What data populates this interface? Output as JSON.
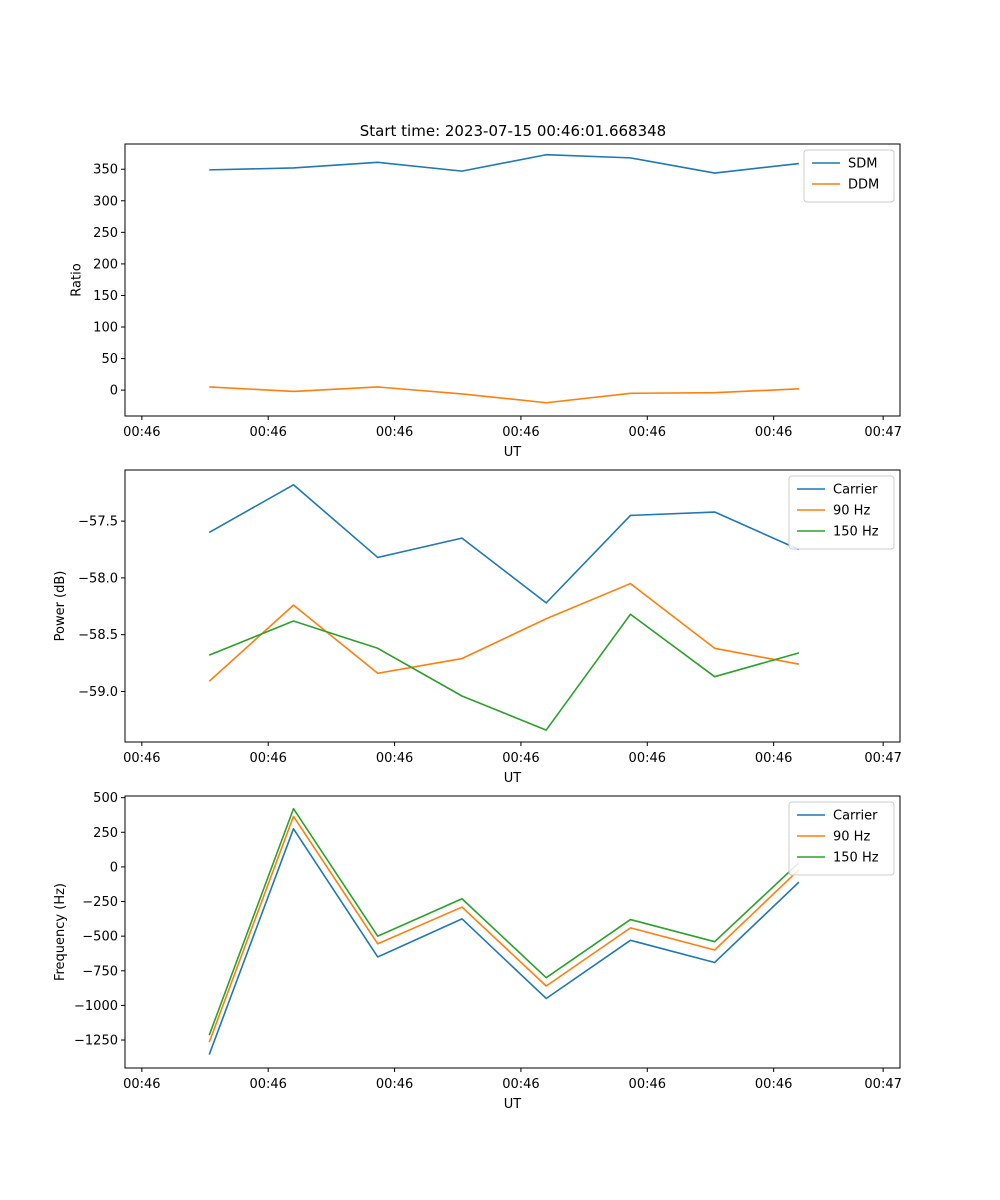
{
  "figure_title": "Start time: 2023-07-15 00:46:01.668348",
  "chart_data": [
    {
      "type": "line",
      "title": "Start time: 2023-07-15 00:46:01.668348",
      "xlabel": "UT",
      "ylabel": "Ratio",
      "x": [
        1,
        2,
        3,
        4,
        5,
        6,
        7,
        8
      ],
      "xlim": [
        0,
        9.2
      ],
      "xticks": [
        0.2,
        1.7,
        3.2,
        4.7,
        6.2,
        7.7,
        9.0
      ],
      "xtick_labels": [
        "00:46",
        "00:46",
        "00:46",
        "00:46",
        "00:46",
        "00:46",
        "00:47"
      ],
      "ylim": [
        -41,
        390
      ],
      "yticks": [
        0,
        50,
        100,
        150,
        200,
        250,
        300,
        350
      ],
      "ytick_labels": [
        "0",
        "50",
        "100",
        "150",
        "200",
        "250",
        "300",
        "350"
      ],
      "legend_position": "top-right",
      "series": [
        {
          "name": "SDM",
          "color": "#1f77b4",
          "values": [
            349,
            352,
            361,
            347,
            373,
            368,
            344,
            359
          ]
        },
        {
          "name": "DDM",
          "color": "#ff7f0e",
          "values": [
            5,
            -2,
            5,
            -6,
            -20,
            -5,
            -4,
            2
          ]
        }
      ]
    },
    {
      "type": "line",
      "title": "",
      "xlabel": "UT",
      "ylabel": "Power (dB)",
      "x": [
        1,
        2,
        3,
        4,
        5,
        6,
        7,
        8
      ],
      "xlim": [
        0,
        9.2
      ],
      "xticks": [
        0.2,
        1.7,
        3.2,
        4.7,
        6.2,
        7.7,
        9.0
      ],
      "xtick_labels": [
        "00:46",
        "00:46",
        "00:46",
        "00:46",
        "00:46",
        "00:46",
        "00:47"
      ],
      "ylim": [
        -59.445,
        -57.05
      ],
      "yticks": [
        -59.0,
        -58.5,
        -58.0,
        -57.5
      ],
      "ytick_labels": [
        "−59.0",
        "−58.5",
        "−58.0",
        "−57.5"
      ],
      "legend_position": "top-right",
      "series": [
        {
          "name": "Carrier",
          "color": "#1f77b4",
          "values": [
            -57.6,
            -57.18,
            -57.82,
            -57.65,
            -58.22,
            -57.45,
            -57.42,
            -57.75
          ]
        },
        {
          "name": "90 Hz",
          "color": "#ff7f0e",
          "values": [
            -58.91,
            -58.24,
            -58.84,
            -58.71,
            -58.36,
            -58.05,
            -58.62,
            -58.76
          ]
        },
        {
          "name": "150 Hz",
          "color": "#2ca02c",
          "values": [
            -58.68,
            -58.38,
            -58.62,
            -59.04,
            -59.34,
            -58.32,
            -58.87,
            -58.66
          ]
        }
      ]
    },
    {
      "type": "line",
      "title": "",
      "xlabel": "UT",
      "ylabel": "Frequency (Hz)",
      "x": [
        1,
        2,
        3,
        4,
        5,
        6,
        7,
        8
      ],
      "xlim": [
        0,
        9.2
      ],
      "xticks": [
        0.2,
        1.7,
        3.2,
        4.7,
        6.2,
        7.7,
        9.0
      ],
      "xtick_labels": [
        "00:46",
        "00:46",
        "00:46",
        "00:46",
        "00:46",
        "00:46",
        "00:47"
      ],
      "ylim": [
        -1452,
        512
      ],
      "yticks": [
        -1250,
        -1000,
        -750,
        -500,
        -250,
        0,
        250,
        500
      ],
      "ytick_labels": [
        "−1250",
        "−1000",
        "−750",
        "−500",
        "−250",
        "0",
        "250",
        "500"
      ],
      "legend_position": "top-right",
      "series": [
        {
          "name": "Carrier",
          "color": "#1f77b4",
          "values": [
            -1355,
            275,
            -650,
            -375,
            -950,
            -530,
            -690,
            -110
          ]
        },
        {
          "name": "90 Hz",
          "color": "#ff7f0e",
          "values": [
            -1265,
            365,
            -555,
            -290,
            -860,
            -440,
            -600,
            -20
          ]
        },
        {
          "name": "150 Hz",
          "color": "#2ca02c",
          "values": [
            -1215,
            420,
            -500,
            -230,
            -800,
            -380,
            -540,
            30
          ]
        }
      ]
    }
  ]
}
